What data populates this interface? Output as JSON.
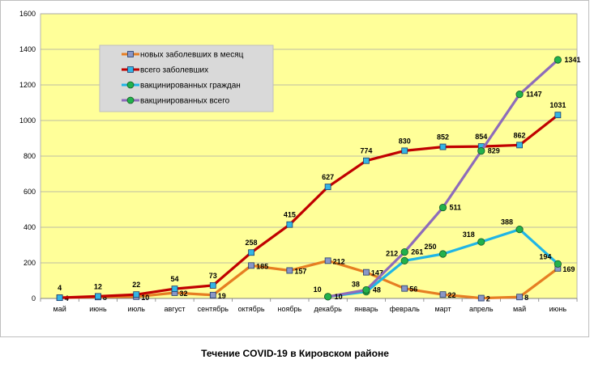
{
  "chart_data": {
    "type": "line",
    "title": "Течение COVID-19 в Кировском районе",
    "xlabel": "",
    "ylabel": "",
    "ylim": [
      0,
      1600
    ],
    "yticks": [
      0,
      200,
      400,
      600,
      800,
      1000,
      1200,
      1400,
      1600
    ],
    "grid": true,
    "legend_position": "top-left",
    "plot_background": "#ffff99",
    "categories": [
      "май",
      "июнь",
      "июль",
      "август",
      "сентябрь",
      "октябрь",
      "ноябрь",
      "декабрь",
      "январь",
      "февраль",
      "март",
      "апрель",
      "май",
      "июнь"
    ],
    "series": [
      {
        "name": "новых заболевших в месяц",
        "line_color": "#e67e22",
        "marker_color": "#8a97c7",
        "marker": "square",
        "values": [
          4,
          8,
          10,
          32,
          19,
          185,
          157,
          212,
          147,
          56,
          22,
          2,
          8,
          169
        ]
      },
      {
        "name": "всего заболевших",
        "line_color": "#c00000",
        "marker_color": "#33b5e5",
        "marker": "square",
        "values": [
          4,
          12,
          22,
          54,
          73,
          258,
          415,
          627,
          774,
          830,
          852,
          854,
          862,
          1031
        ]
      },
      {
        "name": "вакцинированных граждан",
        "line_color": "#1fb5e6",
        "marker_color": "#22b14c",
        "marker": "circle",
        "values": [
          null,
          null,
          null,
          null,
          null,
          null,
          null,
          10,
          38,
          212,
          250,
          318,
          388,
          194
        ]
      },
      {
        "name": "вакцинированных всего",
        "line_color": "#8e6cba",
        "marker_color": "#22b14c",
        "marker": "circle",
        "values": [
          null,
          null,
          null,
          null,
          null,
          null,
          null,
          10,
          48,
          261,
          511,
          829,
          1147,
          1341
        ]
      }
    ]
  }
}
